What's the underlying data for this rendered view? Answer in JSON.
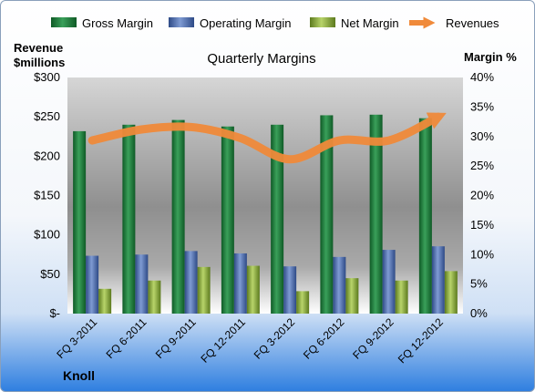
{
  "chart_data": {
    "type": "bar",
    "title": "Quarterly Margins",
    "company": "Knoll",
    "categories": [
      "FQ 3-2011",
      "FQ 6-2011",
      "FQ 9-2011",
      "FQ 12-2011",
      "FQ 3-2012",
      "FQ 6-2012",
      "FQ 9-2012",
      "FQ 12-2012"
    ],
    "left_axis": {
      "label_line1": "Revenue",
      "label_line2": "$millions",
      "ylim": [
        0,
        300
      ],
      "ticks": [
        "$-",
        "$50",
        "$100",
        "$150",
        "$200",
        "$250",
        "$300"
      ]
    },
    "right_axis": {
      "label": "Margin %",
      "ylim": [
        0,
        40
      ],
      "ticks": [
        "0%",
        "5%",
        "10%",
        "15%",
        "20%",
        "25%",
        "30%",
        "35%",
        "40%"
      ]
    },
    "series": [
      {
        "name": "Gross Margin",
        "axis": "right",
        "color": "#1e7a3a",
        "values": [
          30.9,
          32.0,
          32.8,
          31.7,
          32.0,
          33.6,
          33.7,
          33.1
        ]
      },
      {
        "name": "Operating Margin",
        "axis": "right",
        "color": "#4f6fb0",
        "values": [
          9.8,
          10.0,
          10.6,
          10.2,
          8.0,
          9.6,
          10.8,
          11.4
        ]
      },
      {
        "name": "Net Margin",
        "axis": "right",
        "color": "#8db33a",
        "values": [
          4.2,
          5.6,
          7.9,
          8.1,
          3.8,
          6.0,
          5.6,
          7.2
        ]
      },
      {
        "name": "Revenues",
        "axis": "left",
        "color": "#f08a3a",
        "type": "line",
        "values": [
          220,
          234,
          237,
          223,
          196,
          220,
          220,
          250
        ]
      }
    ],
    "legend_position": "top",
    "grid": false
  }
}
